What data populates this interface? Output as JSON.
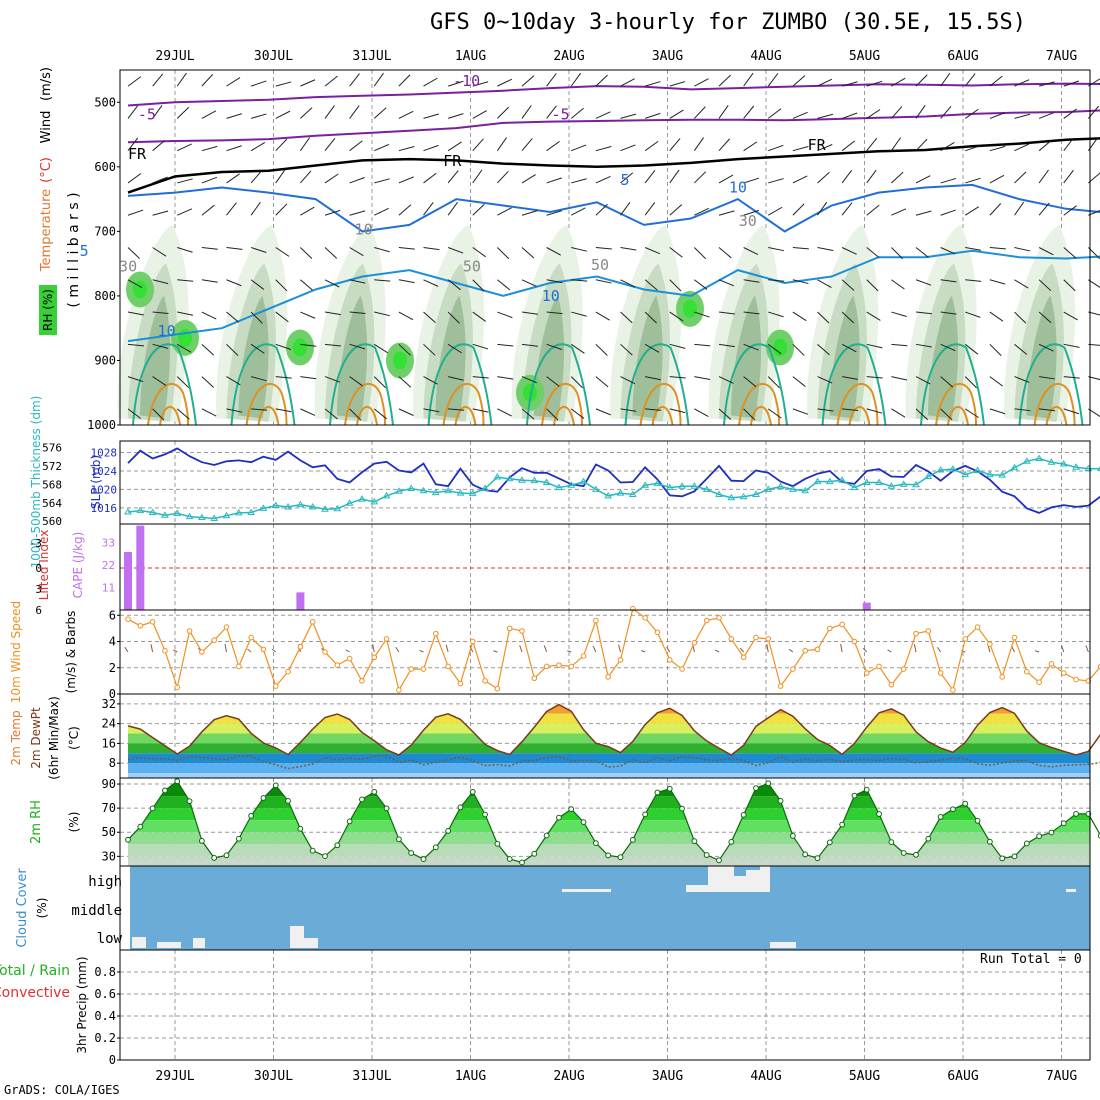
{
  "title": "GFS 0~10day 3-hourly for ZUMBO (30.5E, 15.5S)",
  "credit": "GrADS: COLA/IGES",
  "run_total_label": "Run Total = 0",
  "colors": {
    "grid": "#9a9a9a",
    "temp_contour": "#7a1fa0",
    "freezing": "#000000",
    "pos_temp_contour": "#1f6fd6",
    "warm_contour": "#20b090",
    "hot_contour": "#e09020",
    "slp": "#1e2fbf",
    "thickness": "#28b8c0",
    "cape": "#c070f0",
    "lifted": "#e03030",
    "wind_speed": "#f09020",
    "barb": "#8a5a3a",
    "temp_fill": "#e8c000",
    "dew": "#2070e0",
    "rh_green": "#20b020",
    "cloud_bg": "#6aabd8",
    "cloud_block": "#f0f0f0",
    "rh_shade": "#30d030"
  },
  "chart_data": [
    {
      "panel": "upper-air",
      "type": "heatmap",
      "dates": [
        "29JUL",
        "30JUL",
        "31JUL",
        "1AUG",
        "2AUG",
        "3AUG",
        "4AUG",
        "5AUG",
        "6AUG",
        "7AUG"
      ],
      "y_ticks": [
        500,
        600,
        700,
        800,
        900,
        1000
      ],
      "ylabel_parts": [
        "Temperature",
        "(°C)",
        "Wind",
        "(m/s)"
      ],
      "ylabel2": "( m i l l i b a r s )",
      "legend": "RH (%)",
      "contour_labels": [
        {
          "text": "-10",
          "x": 3.3,
          "y": 475
        },
        {
          "text": "-5",
          "x": 0.1,
          "y": 527
        },
        {
          "text": "-5",
          "x": 4.3,
          "y": 527
        },
        {
          "text": "FR",
          "x": 0.0,
          "y": 588
        },
        {
          "text": "FR",
          "x": 3.2,
          "y": 599
        },
        {
          "text": "FR",
          "x": 6.9,
          "y": 574
        },
        {
          "text": "5",
          "x": 5.0,
          "y": 628
        },
        {
          "text": "5",
          "x": -1.1,
          "y": 738
        },
        {
          "text": "10",
          "x": 0.3,
          "y": 862
        },
        {
          "text": "10",
          "x": 4.2,
          "y": 808
        },
        {
          "text": "10",
          "x": 6.1,
          "y": 640
        },
        {
          "text": "10",
          "x": 2.3,
          "y": 705
        },
        {
          "text": "30",
          "x": 6.2,
          "y": 692
        },
        {
          "text": "50",
          "x": 3.4,
          "y": 762
        },
        {
          "text": "50",
          "x": 4.7,
          "y": 760
        },
        {
          "text": "30",
          "x": -0.7,
          "y": 762
        }
      ]
    },
    {
      "panel": "slp-thickness",
      "type": "line",
      "ylabel_left": "1000-500mb Thickness (dm)",
      "ylabel_right": "SLP (mb)",
      "y_ticks_left": [
        560,
        564,
        568,
        572,
        576
      ],
      "y_ticks_right": [
        1016,
        1020,
        1024,
        1028
      ],
      "ylim_slp": [
        1012.5,
        1030.5
      ],
      "ylim_thk": [
        559.4,
        577.4
      ],
      "series": [
        {
          "key": "slp",
          "values": [
            1025.7,
            1028.4,
            1026.7,
            1027.6,
            1028.9,
            1027.2,
            1025.9,
            1025.3,
            1026.1,
            1026.3,
            1025.9,
            1027.1,
            1026.4,
            1028.2,
            1026.3,
            1024.8,
            1025.2,
            1022.3,
            1021.5,
            1023.7,
            1025.6,
            1026.0,
            1024.1,
            1023.7,
            1025.6,
            1021.1,
            1020.7,
            1024.5,
            1021.0,
            1019.8,
            1019.5,
            1022.6,
            1024.6,
            1023.6,
            1023.6,
            1022.4,
            1021.1,
            1020.7,
            1025.4,
            1024.1,
            1021.5,
            1021.6,
            1024.8,
            1022.2,
            1018.7,
            1018.5,
            1019.6,
            1022.3,
            1025.1,
            1021.9,
            1021.8,
            1024.1,
            1023.6,
            1021.7,
            1020.7,
            1022.3,
            1023.4,
            1024.0,
            1021.6,
            1021.2,
            1024.0,
            1024.4,
            1022.8,
            1022.7,
            1025.3,
            1023.9,
            1021.9,
            1024.0,
            1025.1,
            1023.9,
            1022.1,
            1019.5,
            1018.5,
            1015.9,
            1014.9,
            1016.1,
            1016.6,
            1016.2,
            1016.5,
            1018.5
          ]
        },
        {
          "key": "thk",
          "values": [
            562.0,
            562.3,
            561.9,
            561.3,
            561.7,
            561.0,
            560.8,
            560.6,
            561.2,
            561.8,
            561.9,
            562.8,
            563.4,
            563.1,
            563.6,
            563.1,
            562.6,
            562.7,
            563.9,
            564.8,
            564.2,
            565.5,
            566.5,
            567.1,
            566.6,
            566.2,
            566.6,
            566.1,
            566.0,
            567.1,
            569.6,
            569.2,
            568.9,
            568.8,
            568.4,
            567.3,
            567.8,
            568.6,
            566.9,
            565.5,
            566.1,
            565.8,
            567.8,
            568.2,
            567.3,
            567.6,
            567.6,
            566.9,
            565.8,
            565.1,
            565.3,
            565.8,
            566.9,
            567.5,
            566.9,
            566.6,
            568.6,
            568.6,
            568.9,
            567.3,
            568.4,
            568.4,
            567.6,
            568.0,
            567.9,
            569.7,
            571.1,
            571.3,
            570.1,
            571.0,
            570.1,
            570.0,
            571.6,
            573.0,
            573.6,
            572.8,
            572.4,
            571.7,
            571.4,
            571.4
          ]
        }
      ]
    },
    {
      "panel": "cape-lifted",
      "type": "bar",
      "ylabel_left": "Lifted Index",
      "ylabel_right": "CAPE (J/kg)",
      "y_ticks_lifted": [
        "-3",
        "0",
        "3",
        "6"
      ],
      "y_ticks_cape": [
        11,
        22,
        33
      ],
      "ylim_cape": [
        0,
        42
      ],
      "series": [
        {
          "key": "cape",
          "values": [
            28.3,
            41.2,
            0,
            0,
            0,
            0,
            0,
            0,
            0,
            0,
            0,
            0,
            0,
            0,
            8.6,
            0,
            0,
            0,
            0,
            0,
            0,
            0,
            0,
            0,
            0,
            0,
            0,
            0,
            0,
            0,
            0,
            0,
            0,
            0,
            0,
            0,
            0,
            0,
            0,
            0,
            0,
            0,
            0,
            0,
            0,
            0,
            0,
            0,
            0,
            0,
            0,
            0,
            0,
            0,
            0,
            0,
            0,
            0,
            0,
            0,
            3.6,
            0,
            0,
            0,
            0,
            0,
            0,
            0,
            0,
            0,
            0,
            0,
            0,
            0,
            0,
            0,
            0,
            0,
            0,
            0
          ]
        }
      ]
    },
    {
      "panel": "wind10m",
      "type": "line",
      "ylabel_left": "10m Wind Speed",
      "ylabel_right": "(m/s) & Barbs",
      "y_ticks": [
        0,
        2,
        4,
        6
      ],
      "ylim": [
        0,
        6.4
      ],
      "series": [
        {
          "key": "ws",
          "values": [
            5.7,
            5.2,
            5.5,
            3.3,
            0.5,
            4.8,
            3.2,
            4.1,
            5.1,
            2.1,
            4.3,
            3.4,
            0.6,
            1.7,
            3.6,
            5.5,
            3.2,
            2.2,
            2.7,
            1.0,
            2.8,
            4.2,
            0.3,
            1.9,
            1.9,
            4.6,
            2.1,
            0.8,
            4.0,
            1.0,
            0.4,
            5.0,
            4.8,
            1.2,
            2.1,
            2.2,
            2.1,
            2.9,
            5.6,
            1.3,
            2.6,
            6.5,
            5.8,
            4.7,
            2.6,
            1.9,
            3.9,
            5.6,
            5.8,
            4.2,
            2.8,
            4.3,
            4.2,
            0.6,
            1.9,
            3.3,
            3.4,
            5.0,
            5.3,
            4.0,
            1.6,
            2.1,
            0.7,
            1.9,
            4.6,
            4.8,
            1.6,
            0.3,
            4.2,
            5.1,
            3.8,
            1.3,
            4.3,
            1.7,
            0.9,
            2.3,
            1.6,
            1.1,
            1.0,
            2.1
          ]
        }
      ]
    },
    {
      "panel": "temp2m",
      "type": "area",
      "ylabel_parts": [
        "2m Temp",
        "2m DewPt",
        "(6hr Min/Max)",
        "(°C)"
      ],
      "y_ticks": [
        8,
        16,
        24,
        32
      ],
      "ylim": [
        2,
        36
      ],
      "series": [
        {
          "key": "temp",
          "values": [
            23.1,
            21.8,
            18.4,
            15.1,
            11.7,
            14.9,
            20.7,
            25.6,
            27.2,
            25.8,
            20.1,
            16.2,
            14.2,
            11.5,
            16.4,
            21.8,
            26.5,
            27.9,
            25.7,
            20.5,
            17.1,
            13.4,
            11.3,
            15.3,
            21.4,
            26.6,
            28.0,
            25.7,
            20.8,
            15.6,
            13.1,
            11.5,
            16.7,
            22.6,
            28.9,
            31.7,
            29.0,
            21.5,
            16.1,
            14.7,
            12.3,
            16.8,
            23.6,
            28.4,
            30.2,
            27.3,
            21.1,
            17.0,
            14.1,
            11.3,
            15.2,
            22.9,
            26.4,
            29.7,
            27.0,
            21.9,
            17.6,
            15.2,
            11.6,
            16.0,
            22.6,
            28.4,
            30.0,
            27.4,
            20.7,
            16.7,
            14.2,
            12.4,
            16.4,
            23.4,
            28.5,
            30.5,
            28.2,
            21.0,
            16.3,
            14.4,
            12.8,
            11.3,
            12.8,
            19.7
          ]
        },
        {
          "key": "dew",
          "values": [
            9.4,
            10.3,
            9.7,
            9.8,
            9.1,
            10.7,
            10.3,
            9.8,
            9.5,
            10.9,
            10.8,
            8.7,
            7.3,
            5.8,
            6.6,
            7.7,
            10.2,
            9.3,
            10.1,
            9.5,
            10.8,
            11.0,
            8.4,
            9.3,
            7.4,
            8.4,
            9.3,
            10.5,
            9.0,
            7.0,
            7.4,
            6.9,
            8.9,
            9.0,
            10.4,
            10.6,
            8.9,
            9.1,
            9.0,
            6.4,
            6.8,
            9.5,
            8.2,
            10.3,
            9.0,
            10.8,
            10.2,
            9.3,
            9.2,
            9.9,
            9.0,
            7.0,
            8.2,
            10.7,
            8.6,
            9.7,
            8.9,
            9.6,
            8.6,
            9.3,
            9.4,
            9.1,
            9.9,
            9.6,
            8.2,
            8.6,
            9.3,
            9.9,
            9.8,
            7.8,
            7.1,
            8.1,
            8.9,
            9.1,
            7.1,
            6.5,
            7.1,
            7.4,
            7.5,
            8.3
          ]
        }
      ]
    },
    {
      "panel": "rh2m",
      "type": "area",
      "ylabel": "2m RH",
      "ylabel_unit": "(%)",
      "y_ticks": [
        30,
        50,
        70,
        90
      ],
      "ylim": [
        22,
        95
      ],
      "series": [
        {
          "key": "rh",
          "values": [
            43.8,
            54.6,
            69.8,
            84.7,
            92.3,
            75.8,
            42.8,
            28.7,
            30.9,
            44.6,
            63.6,
            78.4,
            88.9,
            76.0,
            52.9,
            34.7,
            30.2,
            39.2,
            59.0,
            77.2,
            83.5,
            69.8,
            44.2,
            32.8,
            27.7,
            37.5,
            51.1,
            70.7,
            83.5,
            64.7,
            40.4,
            27.8,
            24.9,
            32.1,
            47.3,
            62.1,
            69.2,
            58.4,
            41.0,
            30.8,
            29.3,
            43.7,
            64.8,
            83.0,
            86.1,
            69.6,
            42.6,
            31.1,
            26.7,
            42.0,
            64.4,
            86.6,
            90.6,
            76.0,
            47.0,
            31.6,
            28.5,
            41.6,
            56.3,
            80.4,
            85.3,
            65.1,
            41.8,
            32.8,
            31.3,
            44.6,
            62.7,
            69.1,
            73.7,
            59.5,
            42.1,
            28.3,
            30.0,
            40.7,
            46.7,
            49.8,
            57.4,
            65.2,
            65.2,
            47.1
          ]
        }
      ]
    },
    {
      "panel": "cloud",
      "type": "bar",
      "ylabel": "Cloud Cover",
      "ylabel_unit": "(%)",
      "levels": [
        "high",
        "middle",
        "low"
      ]
    },
    {
      "panel": "precip",
      "type": "bar",
      "ylabel_left": "Total / Rain",
      "ylabel_left2": "Convective",
      "ylabel_right": "3hr Precip (mm)",
      "y_ticks": [
        "0",
        "0.2",
        "0.4",
        "0.6",
        "0.8"
      ],
      "ylim": [
        0,
        1
      ],
      "values": []
    }
  ]
}
